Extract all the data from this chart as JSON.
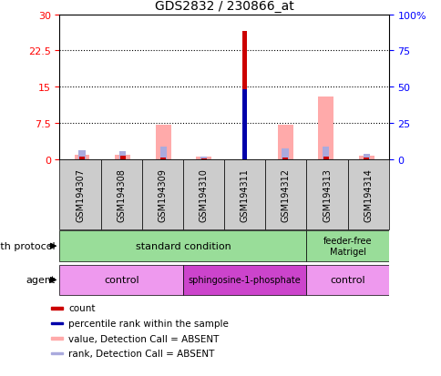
{
  "title": "GDS2832 / 230866_at",
  "samples": [
    "GSM194307",
    "GSM194308",
    "GSM194309",
    "GSM194310",
    "GSM194311",
    "GSM194312",
    "GSM194313",
    "GSM194314"
  ],
  "count_values": [
    0.5,
    0.8,
    0.3,
    0.2,
    26.5,
    0.3,
    0.5,
    0.3
  ],
  "count_present": [
    false,
    false,
    false,
    false,
    true,
    false,
    false,
    false
  ],
  "percentile_rank": [
    null,
    null,
    null,
    null,
    48,
    null,
    null,
    null
  ],
  "absent_value": [
    1.0,
    1.0,
    7.2,
    0.5,
    null,
    7.2,
    13.0,
    0.8
  ],
  "absent_rank": [
    6.5,
    5.5,
    8.5,
    2.0,
    null,
    7.8,
    8.5,
    4.0
  ],
  "ylim_left": [
    0,
    30
  ],
  "ylim_right": [
    0,
    100
  ],
  "yticks_left": [
    0,
    7.5,
    15,
    22.5,
    30
  ],
  "yticks_right": [
    0,
    25,
    50,
    75,
    100
  ],
  "color_count_present": "#cc0000",
  "color_count_absent": "#cc0000",
  "color_rank_present": "#0000aa",
  "color_value_absent": "#ffaaaa",
  "color_rank_absent": "#aaaadd",
  "bg_color": "#cccccc",
  "gp_color": "#99dd99",
  "agent_light": "#ee99ee",
  "agent_dark": "#cc44cc",
  "legend_items": [
    {
      "color": "#cc0000",
      "label": "count"
    },
    {
      "color": "#0000aa",
      "label": "percentile rank within the sample"
    },
    {
      "color": "#ffaaaa",
      "label": "value, Detection Call = ABSENT"
    },
    {
      "color": "#aaaadd",
      "label": "rank, Detection Call = ABSENT"
    }
  ]
}
